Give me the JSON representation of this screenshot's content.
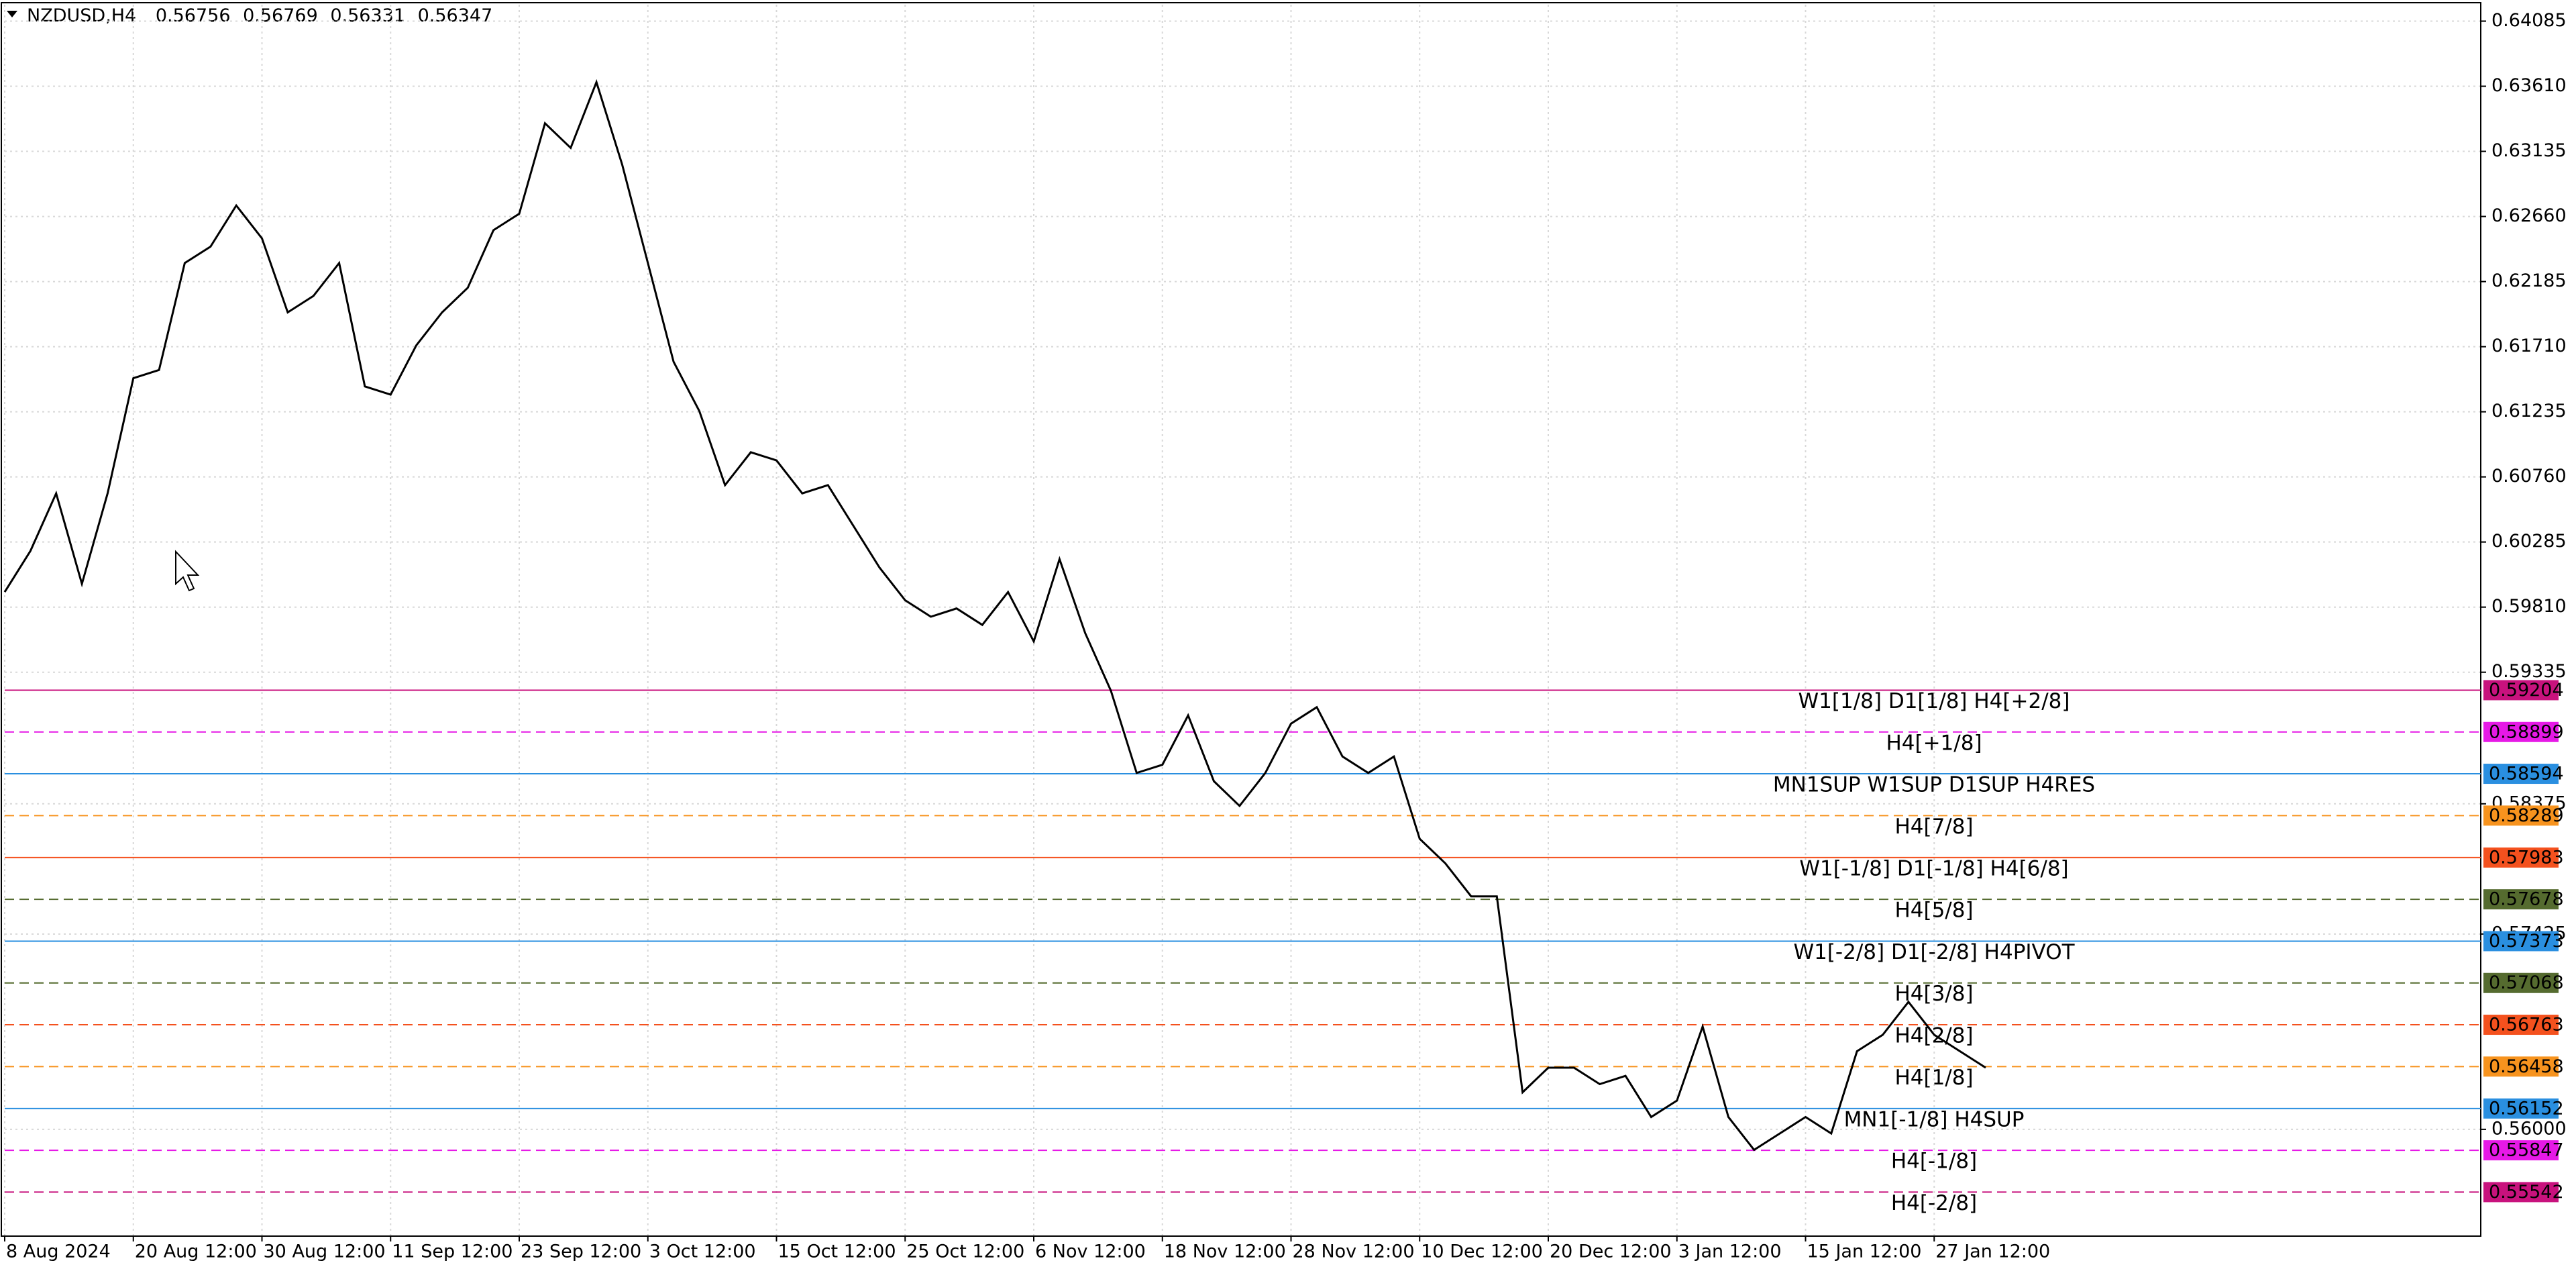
{
  "header": {
    "symbol": "NZDUSD,H4",
    "open": 0.56756,
    "high": 0.56769,
    "low": 0.56331,
    "close": 0.56347
  },
  "chart_data": {
    "type": "line",
    "color": "#000000",
    "grid": true,
    "categories": [
      "8 Aug 2024",
      null,
      null,
      null,
      null,
      "20 Aug 12:00",
      null,
      null,
      null,
      null,
      "30 Aug 12:00",
      null,
      null,
      null,
      null,
      "11 Sep 12:00",
      null,
      null,
      null,
      null,
      "23 Sep 12:00",
      null,
      null,
      null,
      null,
      "3 Oct 12:00",
      null,
      null,
      null,
      null,
      "15 Oct 12:00",
      null,
      null,
      null,
      null,
      "25 Oct 12:00",
      null,
      null,
      null,
      null,
      "6 Nov 12:00",
      null,
      null,
      null,
      null,
      "18 Nov 12:00",
      null,
      null,
      null,
      null,
      "28 Nov 12:00",
      null,
      null,
      null,
      null,
      "10 Dec 12:00",
      null,
      null,
      null,
      null,
      "20 Dec 12:00",
      null,
      null,
      null,
      null,
      "3 Jan 12:00",
      null,
      null,
      null,
      null,
      "15 Jan 12:00",
      null,
      null,
      null,
      null,
      "27 Jan 12:00",
      null,
      null
    ],
    "values": [
      0.5992,
      0.6022,
      0.6064,
      0.5998,
      0.6064,
      0.6148,
      0.6154,
      0.6232,
      0.6244,
      0.6274,
      0.625,
      0.6196,
      0.6208,
      0.6232,
      0.6142,
      0.6136,
      0.6172,
      0.6196,
      0.6214,
      0.6256,
      0.6268,
      0.6334,
      0.6316,
      0.6364,
      0.6304,
      0.6232,
      0.616,
      0.6124,
      0.607,
      0.6094,
      0.6088,
      0.6064,
      0.607,
      0.604,
      0.601,
      0.5986,
      0.5974,
      0.598,
      0.5968,
      0.5992,
      0.5956,
      0.6016,
      0.5962,
      0.592,
      0.586,
      0.5866,
      0.5902,
      0.5854,
      0.5836,
      0.586,
      0.5896,
      0.5908,
      0.5872,
      0.586,
      0.5872,
      0.5812,
      0.5794,
      0.577,
      0.577,
      0.5627,
      0.5645,
      0.5645,
      0.5633,
      0.5639,
      0.5609,
      0.5621,
      0.5675,
      0.5609,
      0.5585,
      0.5597,
      0.5609,
      0.5597,
      0.5657,
      0.5669,
      0.5693,
      0.5669,
      0.5657,
      0.5645
    ],
    "ylim": [
      0.55221,
      0.64205
    ],
    "yticks": [
      0.64085,
      {
        "value": 0.6361,
        "label": "0.63610"
      },
      0.63135,
      {
        "value": 0.6266,
        "label": "0.62660"
      },
      0.62185,
      {
        "value": 0.6171,
        "label": "0.61710"
      },
      0.61235,
      {
        "value": 0.6076,
        "label": "0.60760"
      },
      0.60285,
      {
        "value": 0.5981,
        "label": "0.59810"
      },
      0.59335,
      0.58375,
      0.57425,
      {
        "value": 0.56,
        "label": "0.56000"
      }
    ],
    "levels": [
      {
        "label": "W1[1/8] D1[1/8] H4[+2/8]",
        "value": 0.59204,
        "color": "#c8127d",
        "style": "solid"
      },
      {
        "label": "H4[+1/8]",
        "value": 0.58899,
        "color": "#e619e6",
        "style": "dashed"
      },
      {
        "label": "MN1SUP W1SUP D1SUP H4RES",
        "value": 0.58594,
        "color": "#2a8fe0",
        "style": "solid"
      },
      {
        "label": "H4[7/8]",
        "value": 0.58289,
        "color": "#f7931e",
        "style": "dashed"
      },
      {
        "label": "W1[-1/8] D1[-1/8] H4[6/8]",
        "value": 0.57983,
        "color": "#f4511e",
        "style": "solid"
      },
      {
        "label": "H4[5/8]",
        "value": 0.57678,
        "color": "#556b2f",
        "style": "dashed"
      },
      {
        "label": "W1[-2/8] D1[-2/8] H4PIVOT",
        "value": 0.57373,
        "color": "#2a8fe0",
        "style": "solid"
      },
      {
        "label": "H4[3/8]",
        "value": 0.57068,
        "color": "#556b2f",
        "style": "dashed"
      },
      {
        "label": "H4[2/8]",
        "value": 0.56763,
        "color": "#f4511e",
        "style": "dashed"
      },
      {
        "label": "H4[1/8]",
        "value": 0.56458,
        "color": "#f7931e",
        "style": "dashed"
      },
      {
        "label": "MN1[-1/8] H4SUP",
        "value": 0.56152,
        "color": "#2a8fe0",
        "style": "solid"
      },
      {
        "label": "H4[-1/8]",
        "value": 0.55847,
        "color": "#e619e6",
        "style": "dashed"
      },
      {
        "label": "H4[-2/8]",
        "value": 0.55542,
        "color": "#c8127d",
        "style": "dashed"
      }
    ]
  }
}
